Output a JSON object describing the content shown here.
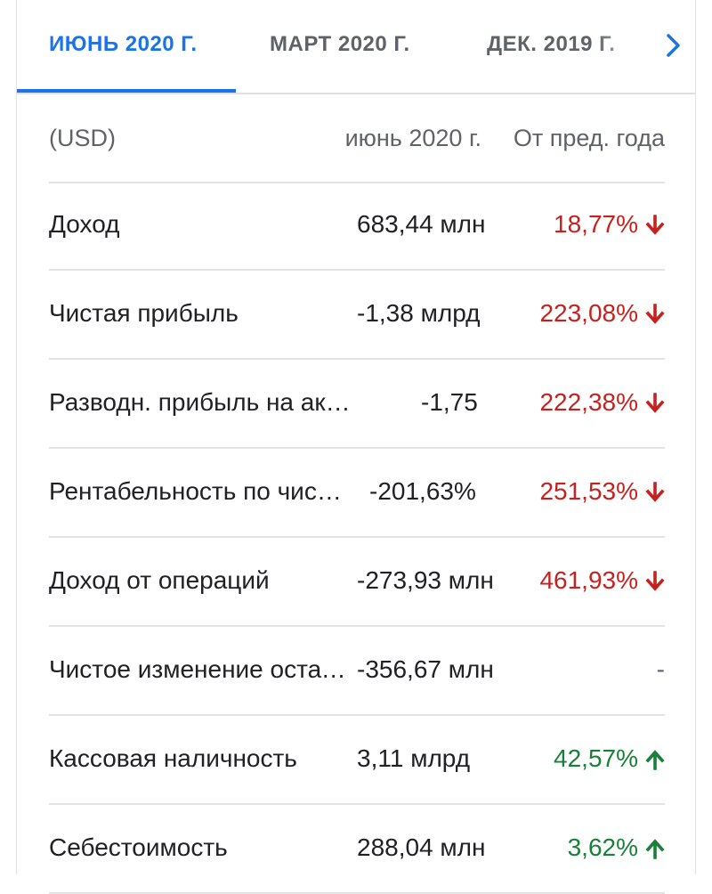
{
  "tabs": [
    {
      "label": "ИЮНЬ 2020 Г.",
      "active": true
    },
    {
      "label": "МАРТ 2020 Г.",
      "active": false
    },
    {
      "label": "ДЕК. 2019 Г.",
      "active": false
    }
  ],
  "tab_next_icon": "chevron-right-icon",
  "header": {
    "currency": "(USD)",
    "period": "июнь 2020 г.",
    "change": "От пред. года"
  },
  "rows": [
    {
      "label": "Доход",
      "value": "683,44 млн",
      "change": "18,77%",
      "trend": "down"
    },
    {
      "label": "Чистая прибыль",
      "value": "-1,38 млрд",
      "change": "223,08%",
      "trend": "down"
    },
    {
      "label": "Разводн. прибыль на акцию",
      "value": "-1,75",
      "change": "222,38%",
      "trend": "down"
    },
    {
      "label": "Рентабельность по чистой прибыли",
      "value": "-201,63%",
      "change": "251,53%",
      "trend": "down"
    },
    {
      "label": "Доход от операций",
      "value": "-273,93 млн",
      "change": "461,93%",
      "trend": "down"
    },
    {
      "label": "Чистое изменение остатка денежных средств",
      "value": "-356,67 млн",
      "change": "-",
      "trend": "none"
    },
    {
      "label": "Кассовая наличность",
      "value": "3,11 млрд",
      "change": "42,57%",
      "trend": "up"
    },
    {
      "label": "Себестоимость",
      "value": "288,04 млн",
      "change": "3,62%",
      "trend": "up"
    }
  ],
  "colors": {
    "accent": "#1a73e8",
    "negative": "#c5221f",
    "positive": "#188038",
    "muted": "#5f6368"
  }
}
